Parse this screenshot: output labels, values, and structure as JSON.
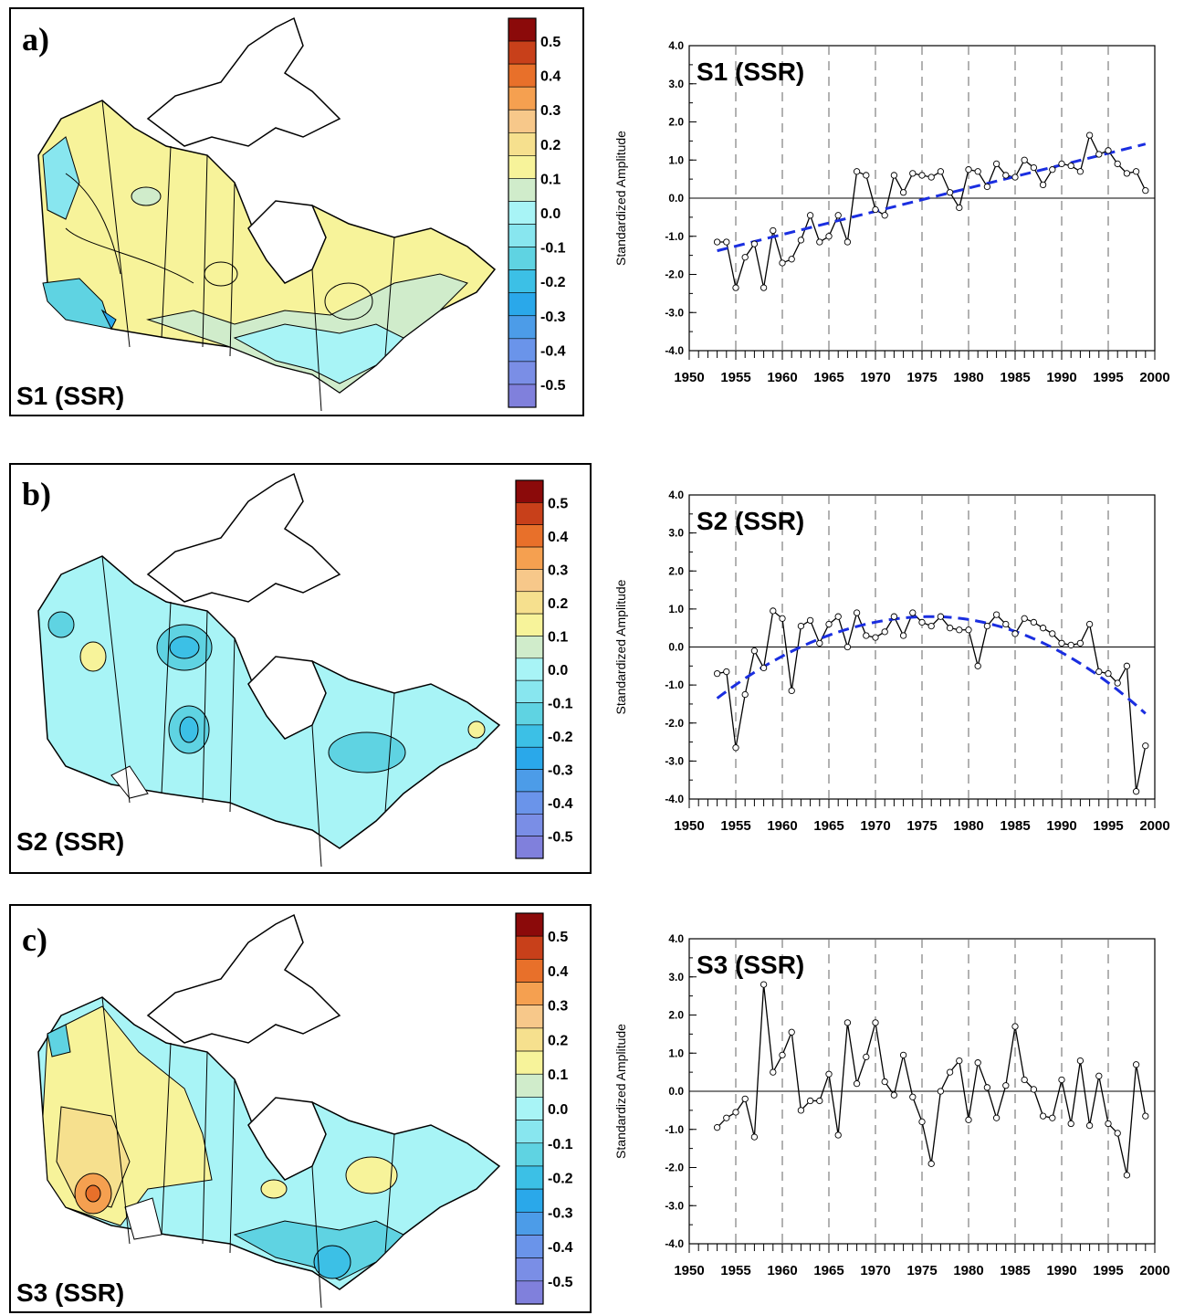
{
  "colorbar_labels": [
    "0.5",
    "0.4",
    "0.3",
    "0.2",
    "0.1",
    "0.0",
    "-0.1",
    "-0.2",
    "-0.3",
    "-0.4",
    "-0.5"
  ],
  "colorbar_colors": [
    "#8b0a0a",
    "#c8401a",
    "#e8702a",
    "#f5a050",
    "#f7c88a",
    "#f6e08e",
    "#f7f39a",
    "#d0eccb",
    "#a8f4f6",
    "#88e6ef",
    "#5fd3e2",
    "#3cc0e6",
    "#2aa8ea",
    "#4c9ce8",
    "#6a94ea",
    "#7a8ee6",
    "#8080dc"
  ],
  "panels": [
    {
      "letter": "a)",
      "map_label": "S1 (SSR)"
    },
    {
      "letter": "b)",
      "map_label": "S2 (SSR)"
    },
    {
      "letter": "c)",
      "map_label": "S3 (SSR)"
    }
  ],
  "chart_data": [
    {
      "type": "line",
      "title": "S1 (SSR)",
      "ylabel": "Standardized Amplitude",
      "xlim": [
        1950,
        2000
      ],
      "ylim": [
        -4.0,
        4.0
      ],
      "yticks": [
        "4.0",
        "3.0",
        "2.0",
        "1.0",
        "0.0",
        "-1.0",
        "-2.0",
        "-3.0",
        "-4.0"
      ],
      "xticks": [
        "1950",
        "1955",
        "1960",
        "1965",
        "1970",
        "1975",
        "1980",
        "1985",
        "1990",
        "1995",
        "2000"
      ],
      "grid": "vertical dashed every 5 years",
      "x": [
        1953,
        1954,
        1955,
        1956,
        1957,
        1958,
        1959,
        1960,
        1961,
        1962,
        1963,
        1964,
        1965,
        1966,
        1967,
        1968,
        1969,
        1970,
        1971,
        1972,
        1973,
        1974,
        1975,
        1976,
        1977,
        1978,
        1979,
        1980,
        1981,
        1982,
        1983,
        1984,
        1985,
        1986,
        1987,
        1988,
        1989,
        1990,
        1991,
        1992,
        1993,
        1994,
        1995,
        1996,
        1997,
        1998,
        1999
      ],
      "y": [
        -1.15,
        -1.15,
        -2.35,
        -1.55,
        -1.2,
        -2.35,
        -0.85,
        -1.7,
        -1.6,
        -1.1,
        -0.45,
        -1.15,
        -1.0,
        -0.45,
        -1.15,
        0.7,
        0.6,
        -0.3,
        -0.45,
        0.6,
        0.15,
        0.65,
        0.6,
        0.55,
        0.7,
        0.15,
        -0.25,
        0.75,
        0.7,
        0.3,
        0.9,
        0.6,
        0.55,
        1.0,
        0.8,
        0.35,
        0.75,
        0.9,
        0.85,
        0.7,
        1.65,
        1.15,
        1.25,
        0.9,
        0.65,
        0.7,
        0.2
      ],
      "trend": {
        "x": [
          1953,
          1999
        ],
        "y": [
          -1.38,
          1.42
        ],
        "color": "#1a2ee0"
      }
    },
    {
      "type": "line",
      "title": "S2 (SSR)",
      "ylabel": "Standardized Amplitude",
      "xlim": [
        1950,
        2000
      ],
      "ylim": [
        -4.0,
        4.0
      ],
      "yticks": [
        "4.0",
        "3.0",
        "2.0",
        "1.0",
        "0.0",
        "-1.0",
        "-2.0",
        "-3.0",
        "-4.0"
      ],
      "xticks": [
        "1950",
        "1955",
        "1960",
        "1965",
        "1970",
        "1975",
        "1980",
        "1985",
        "1990",
        "1995",
        "2000"
      ],
      "grid": "vertical dashed every 5 years",
      "x": [
        1953,
        1954,
        1955,
        1956,
        1957,
        1958,
        1959,
        1960,
        1961,
        1962,
        1963,
        1964,
        1965,
        1966,
        1967,
        1968,
        1969,
        1970,
        1971,
        1972,
        1973,
        1974,
        1975,
        1976,
        1977,
        1978,
        1979,
        1980,
        1981,
        1982,
        1983,
        1984,
        1985,
        1986,
        1987,
        1988,
        1989,
        1990,
        1991,
        1992,
        1993,
        1994,
        1995,
        1996,
        1997,
        1998,
        1999
      ],
      "y": [
        -0.7,
        -0.65,
        -2.65,
        -1.25,
        -0.1,
        -0.55,
        0.95,
        0.75,
        -1.15,
        0.55,
        0.7,
        0.1,
        0.6,
        0.8,
        0.0,
        0.9,
        0.3,
        0.25,
        0.4,
        0.8,
        0.3,
        0.9,
        0.65,
        0.55,
        0.8,
        0.5,
        0.45,
        0.45,
        -0.5,
        0.55,
        0.85,
        0.6,
        0.35,
        0.75,
        0.65,
        0.5,
        0.35,
        0.1,
        0.05,
        0.1,
        0.6,
        -0.65,
        -0.7,
        -0.95,
        -0.5,
        -3.8,
        -2.6
      ],
      "trend": {
        "type": "quadratic",
        "x_start": 1953,
        "x_end": 1999,
        "vertex_x": 1976,
        "vertex_y": 0.8,
        "y_start": -1.35,
        "y_end": -1.75,
        "color": "#1a2ee0"
      }
    },
    {
      "type": "line",
      "title": "S3 (SSR)",
      "ylabel": "Standardized Amplitude",
      "xlim": [
        1950,
        2000
      ],
      "ylim": [
        -4.0,
        4.0
      ],
      "yticks": [
        "4.0",
        "3.0",
        "2.0",
        "1.0",
        "0.0",
        "-1.0",
        "-2.0",
        "-3.0",
        "-4.0"
      ],
      "xticks": [
        "1950",
        "1955",
        "1960",
        "1965",
        "1970",
        "1975",
        "1980",
        "1985",
        "1990",
        "1995",
        "2000"
      ],
      "grid": "vertical dashed every 5 years",
      "x": [
        1953,
        1954,
        1955,
        1956,
        1957,
        1958,
        1959,
        1960,
        1961,
        1962,
        1963,
        1964,
        1965,
        1966,
        1967,
        1968,
        1969,
        1970,
        1971,
        1972,
        1973,
        1974,
        1975,
        1976,
        1977,
        1978,
        1979,
        1980,
        1981,
        1982,
        1983,
        1984,
        1985,
        1986,
        1987,
        1988,
        1989,
        1990,
        1991,
        1992,
        1993,
        1994,
        1995,
        1996,
        1997,
        1998,
        1999
      ],
      "y": [
        -0.95,
        -0.7,
        -0.55,
        -0.2,
        -1.2,
        2.8,
        0.5,
        0.95,
        1.55,
        -0.5,
        -0.25,
        -0.25,
        0.45,
        -1.15,
        1.8,
        0.2,
        0.9,
        1.8,
        0.25,
        -0.1,
        0.95,
        -0.15,
        -0.8,
        -1.9,
        0.0,
        0.5,
        0.8,
        -0.75,
        0.75,
        0.1,
        -0.7,
        0.15,
        1.7,
        0.3,
        0.05,
        -0.65,
        -0.7,
        0.3,
        -0.85,
        0.8,
        -0.9,
        0.4,
        -0.85,
        -1.1,
        -2.2,
        0.7,
        -0.65
      ]
    }
  ]
}
